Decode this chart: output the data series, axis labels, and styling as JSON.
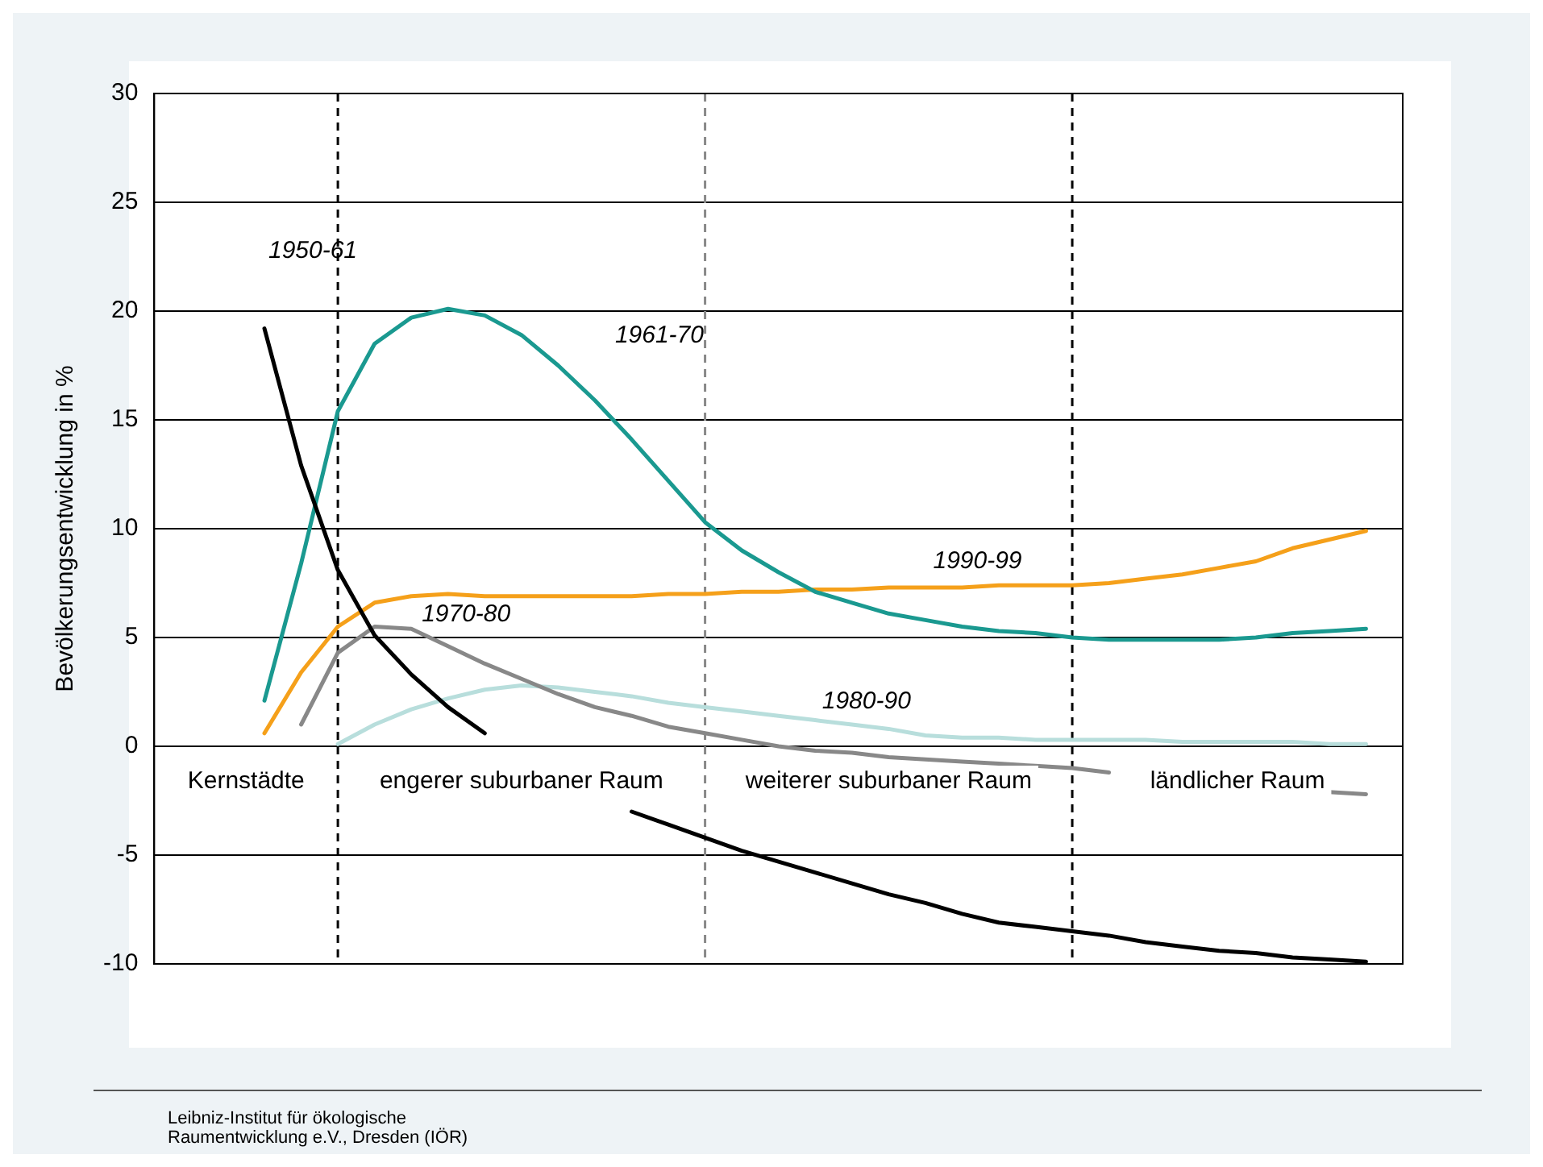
{
  "chart_data": {
    "type": "line",
    "ylabel": "Bevölkerungsentwicklung in %",
    "categories": [
      null,
      null,
      null,
      null,
      null,
      null,
      null,
      null,
      null,
      null,
      null,
      null,
      null,
      null,
      null,
      null,
      null,
      null,
      null,
      null,
      null,
      null,
      null,
      null,
      null,
      null,
      null,
      null,
      null,
      null,
      null,
      null,
      null,
      null,
      null
    ],
    "ylim": [
      -10,
      30
    ],
    "yticks": [
      -10,
      -5,
      0,
      5,
      10,
      15,
      20,
      25,
      30
    ],
    "grid": "y",
    "tick_labels": "y",
    "marker": "none",
    "legend": false,
    "series": [
      {
        "name": "1950-61",
        "color": "#000000",
        "values": [
          null,
          null,
          null,
          19.2,
          12.9,
          8.1,
          5.1,
          3.3,
          1.8,
          0.6,
          null,
          null,
          null,
          -3.0,
          -3.6,
          -4.2,
          -4.8,
          -5.3,
          -5.8,
          -6.3,
          -6.8,
          -7.2,
          -7.7,
          -8.1,
          -8.3,
          -8.5,
          -8.7,
          -9.0,
          -9.2,
          -9.4,
          -9.5,
          -9.7,
          -9.8,
          -9.9,
          null
        ]
      },
      {
        "name": "1961-70",
        "color": "#1a9990",
        "values": [
          null,
          null,
          null,
          2.1,
          8.4,
          15.4,
          18.5,
          19.7,
          20.1,
          19.8,
          18.9,
          17.5,
          15.9,
          14.1,
          12.2,
          10.3,
          9.0,
          8.0,
          7.1,
          6.6,
          6.1,
          5.8,
          5.5,
          5.3,
          5.2,
          5.0,
          4.9,
          4.9,
          4.9,
          4.9,
          5.0,
          5.2,
          5.3,
          5.4,
          null
        ]
      },
      {
        "name": "1990-99",
        "color": "#f5a01a",
        "values": [
          null,
          null,
          null,
          0.6,
          3.4,
          5.5,
          6.6,
          6.9,
          7.0,
          6.9,
          6.9,
          6.9,
          6.9,
          6.9,
          7.0,
          7.0,
          7.1,
          7.1,
          7.2,
          7.2,
          7.3,
          7.3,
          7.3,
          7.4,
          7.4,
          7.4,
          7.5,
          7.7,
          7.9,
          8.2,
          8.5,
          9.1,
          9.5,
          9.9,
          null
        ]
      },
      {
        "name": "1970-80",
        "color": "#888888",
        "values": [
          null,
          null,
          null,
          null,
          1.0,
          4.3,
          5.5,
          5.4,
          4.6,
          3.8,
          3.1,
          2.4,
          1.8,
          1.4,
          0.9,
          0.6,
          0.3,
          0.0,
          -0.2,
          -0.3,
          -0.5,
          -0.6,
          -0.7,
          -0.8,
          -0.9,
          -1.0,
          -1.2,
          null,
          null,
          null,
          null,
          null,
          -2.1,
          -2.2,
          null
        ]
      },
      {
        "name": "1980-90",
        "color": "#b8dedc",
        "values": [
          null,
          null,
          null,
          null,
          null,
          0.1,
          1.0,
          1.7,
          2.2,
          2.6,
          2.8,
          2.7,
          2.5,
          2.3,
          2.0,
          1.8,
          1.6,
          1.4,
          1.2,
          1.0,
          0.8,
          0.5,
          0.4,
          0.4,
          0.3,
          0.3,
          0.3,
          0.3,
          0.2,
          0.2,
          0.2,
          0.2,
          0.1,
          0.1,
          null
        ]
      }
    ],
    "annotations": [
      "Kernstädte",
      "engerer suburbaner Raum",
      "weiterer suburbaner Raum",
      "ländlicher Raum",
      "Leibniz-Institut für ökologische Raumentwicklung e.V., Dresden (IÖR)"
    ]
  }
}
